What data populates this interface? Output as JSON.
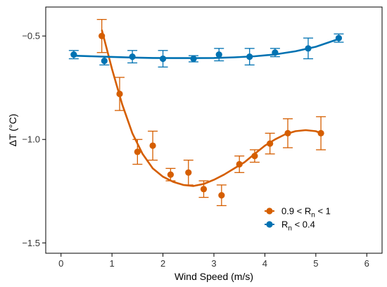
{
  "chart_data": {
    "type": "scatter",
    "xlabel": "Wind Speed (m/s)",
    "ylabel": "ΔT (°C)",
    "xlim": [
      -0.3,
      6.3
    ],
    "ylim": [
      -1.55,
      -0.36
    ],
    "x_ticks": [
      0,
      1,
      2,
      3,
      4,
      5,
      6
    ],
    "y_ticks": [
      -1.5,
      -1.0,
      -0.5
    ],
    "y_tick_labels": [
      "−1.5",
      "−1.0",
      "−0.5"
    ],
    "grid": false,
    "legend_position": "bottom-right",
    "series": [
      {
        "name": "0.9 < Rn < 1",
        "legend": {
          "prefix": "0.9 < R",
          "sub": "n",
          "suffix": " < 1"
        },
        "color": "#d55e00",
        "points": [
          {
            "x": 0.8,
            "y": -0.5,
            "err": 0.08
          },
          {
            "x": 1.15,
            "y": -0.78,
            "err": 0.08
          },
          {
            "x": 1.5,
            "y": -1.06,
            "err": 0.06
          },
          {
            "x": 1.8,
            "y": -1.03,
            "err": 0.07
          },
          {
            "x": 2.15,
            "y": -1.17,
            "err": 0.03
          },
          {
            "x": 2.5,
            "y": -1.16,
            "err": 0.06
          },
          {
            "x": 2.8,
            "y": -1.24,
            "err": 0.04
          },
          {
            "x": 3.15,
            "y": -1.27,
            "err": 0.05
          },
          {
            "x": 3.5,
            "y": -1.12,
            "err": 0.04
          },
          {
            "x": 3.8,
            "y": -1.08,
            "err": 0.03
          },
          {
            "x": 4.1,
            "y": -1.02,
            "err": 0.05
          },
          {
            "x": 4.45,
            "y": -0.97,
            "err": 0.07
          },
          {
            "x": 5.1,
            "y": -0.97,
            "err": 0.08
          }
        ],
        "fit": [
          [
            0.8,
            -0.47
          ],
          [
            1.0,
            -0.66
          ],
          [
            1.2,
            -0.83
          ],
          [
            1.4,
            -0.97
          ],
          [
            1.6,
            -1.07
          ],
          [
            1.8,
            -1.14
          ],
          [
            2.0,
            -1.18
          ],
          [
            2.2,
            -1.205
          ],
          [
            2.4,
            -1.22
          ],
          [
            2.6,
            -1.225
          ],
          [
            2.8,
            -1.215
          ],
          [
            3.0,
            -1.195
          ],
          [
            3.2,
            -1.17
          ],
          [
            3.4,
            -1.14
          ],
          [
            3.6,
            -1.11
          ],
          [
            3.8,
            -1.07
          ],
          [
            4.0,
            -1.03
          ],
          [
            4.2,
            -1.0
          ],
          [
            4.4,
            -0.975
          ],
          [
            4.6,
            -0.96
          ],
          [
            4.8,
            -0.955
          ],
          [
            5.0,
            -0.96
          ],
          [
            5.1,
            -0.97
          ]
        ]
      },
      {
        "name": "Rn < 0.4",
        "legend": {
          "prefix": "R",
          "sub": "n",
          "suffix": " < 0.4"
        },
        "color": "#0072b2",
        "points": [
          {
            "x": 0.25,
            "y": -0.59,
            "err": 0.02
          },
          {
            "x": 0.85,
            "y": -0.62,
            "err": 0.02
          },
          {
            "x": 1.4,
            "y": -0.6,
            "err": 0.03
          },
          {
            "x": 2.0,
            "y": -0.61,
            "err": 0.04
          },
          {
            "x": 2.6,
            "y": -0.61,
            "err": 0.015
          },
          {
            "x": 3.1,
            "y": -0.59,
            "err": 0.03
          },
          {
            "x": 3.7,
            "y": -0.6,
            "err": 0.04
          },
          {
            "x": 4.2,
            "y": -0.58,
            "err": 0.02
          },
          {
            "x": 4.85,
            "y": -0.56,
            "err": 0.05
          },
          {
            "x": 5.45,
            "y": -0.51,
            "err": 0.02
          }
        ],
        "fit": [
          [
            0.2,
            -0.595
          ],
          [
            0.6,
            -0.598
          ],
          [
            1.0,
            -0.601
          ],
          [
            1.4,
            -0.604
          ],
          [
            1.8,
            -0.606
          ],
          [
            2.2,
            -0.607
          ],
          [
            2.6,
            -0.607
          ],
          [
            3.0,
            -0.606
          ],
          [
            3.4,
            -0.603
          ],
          [
            3.8,
            -0.598
          ],
          [
            4.2,
            -0.589
          ],
          [
            4.6,
            -0.574
          ],
          [
            5.0,
            -0.552
          ],
          [
            5.5,
            -0.51
          ]
        ]
      }
    ]
  }
}
